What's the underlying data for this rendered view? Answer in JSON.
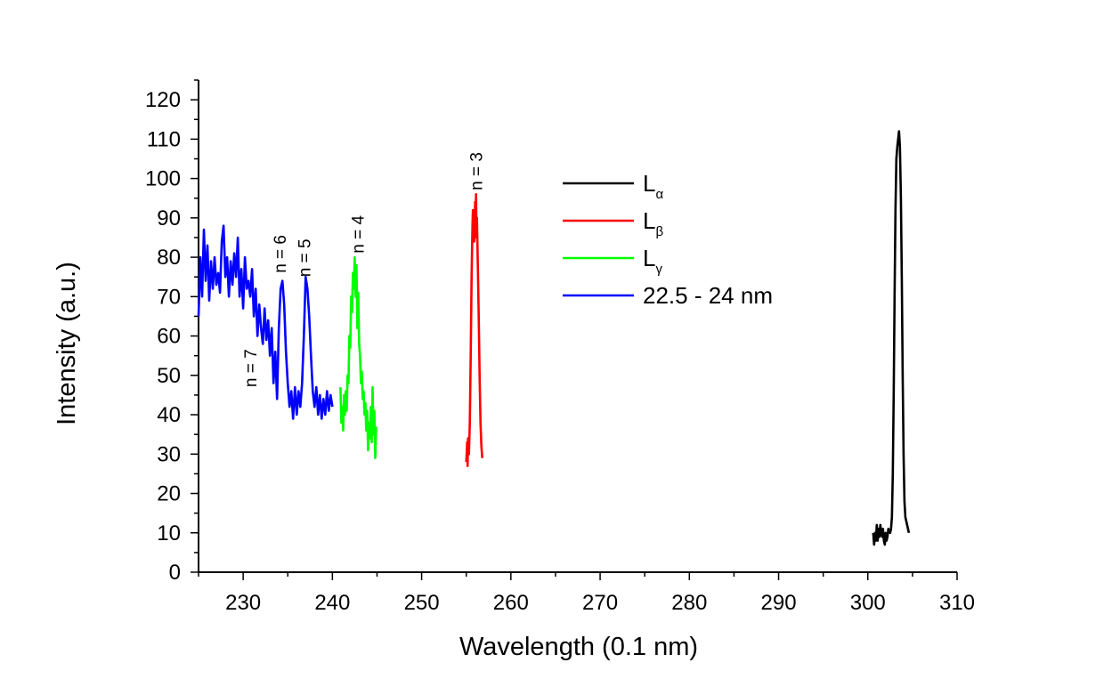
{
  "chart_data": {
    "type": "line",
    "xlabel": "Wavelength (0.1 nm)",
    "ylabel": "Intensity (a.u.)",
    "xlim": [
      225,
      310
    ],
    "ylim": [
      0,
      125
    ],
    "x_ticks": [
      230,
      240,
      250,
      260,
      270,
      280,
      290,
      300,
      310
    ],
    "y_ticks": [
      0,
      10,
      20,
      30,
      40,
      50,
      60,
      70,
      80,
      90,
      100,
      110,
      120
    ],
    "grid": false,
    "legend_position": "top-center",
    "series": [
      {
        "name": "L",
        "name_subscript": "α",
        "color": "#000000",
        "points": [
          [
            300.6,
            10
          ],
          [
            300.7,
            7
          ],
          [
            300.8,
            10
          ],
          [
            300.9,
            8
          ],
          [
            301.0,
            12
          ],
          [
            301.1,
            8
          ],
          [
            301.2,
            11
          ],
          [
            301.3,
            9
          ],
          [
            301.4,
            12
          ],
          [
            301.5,
            10
          ],
          [
            301.6,
            9
          ],
          [
            301.7,
            11
          ],
          [
            301.8,
            8
          ],
          [
            301.9,
            7
          ],
          [
            302.0,
            10
          ],
          [
            302.1,
            8
          ],
          [
            302.2,
            9
          ],
          [
            302.3,
            11
          ],
          [
            302.5,
            10
          ],
          [
            302.6,
            11
          ],
          [
            302.7,
            14
          ],
          [
            302.8,
            25
          ],
          [
            302.9,
            45
          ],
          [
            303.0,
            70
          ],
          [
            303.1,
            92
          ],
          [
            303.2,
            105
          ],
          [
            303.3,
            108
          ],
          [
            303.4,
            110
          ],
          [
            303.5,
            112
          ],
          [
            303.6,
            108
          ],
          [
            303.7,
            95
          ],
          [
            303.8,
            75
          ],
          [
            303.9,
            50
          ],
          [
            304.0,
            30
          ],
          [
            304.1,
            18
          ],
          [
            304.2,
            14
          ],
          [
            304.4,
            12
          ],
          [
            304.6,
            10
          ]
        ]
      },
      {
        "name": "L",
        "name_subscript": "β",
        "color": "#ff0000",
        "points": [
          [
            255.0,
            28
          ],
          [
            255.05,
            30
          ],
          [
            255.1,
            33
          ],
          [
            255.15,
            27
          ],
          [
            255.2,
            34
          ],
          [
            255.3,
            30
          ],
          [
            255.4,
            38
          ],
          [
            255.5,
            55
          ],
          [
            255.6,
            75
          ],
          [
            255.7,
            88
          ],
          [
            255.75,
            92
          ],
          [
            255.8,
            86
          ],
          [
            255.85,
            90
          ],
          [
            255.9,
            84
          ],
          [
            256.0,
            94
          ],
          [
            256.05,
            88
          ],
          [
            256.1,
            96
          ],
          [
            256.15,
            85
          ],
          [
            256.2,
            90
          ],
          [
            256.3,
            78
          ],
          [
            256.4,
            65
          ],
          [
            256.5,
            50
          ],
          [
            256.6,
            38
          ],
          [
            256.7,
            32
          ],
          [
            256.8,
            29
          ]
        ]
      },
      {
        "name": "L",
        "name_subscript": "γ",
        "color": "#00ff00",
        "points": [
          [
            240.9,
            47
          ],
          [
            241.0,
            38
          ],
          [
            241.1,
            42
          ],
          [
            241.2,
            36
          ],
          [
            241.3,
            45
          ],
          [
            241.4,
            40
          ],
          [
            241.5,
            46
          ],
          [
            241.6,
            41
          ],
          [
            241.7,
            50
          ],
          [
            241.8,
            48
          ],
          [
            241.9,
            60
          ],
          [
            242.0,
            57
          ],
          [
            242.1,
            70
          ],
          [
            242.2,
            66
          ],
          [
            242.3,
            76
          ],
          [
            242.4,
            72
          ],
          [
            242.5,
            80
          ],
          [
            242.6,
            70
          ],
          [
            242.7,
            78
          ],
          [
            242.8,
            62
          ],
          [
            242.9,
            71
          ],
          [
            243.0,
            58
          ],
          [
            243.1,
            55
          ],
          [
            243.2,
            48
          ],
          [
            243.3,
            51
          ],
          [
            243.4,
            44
          ],
          [
            243.5,
            46
          ],
          [
            243.6,
            40
          ],
          [
            243.7,
            43
          ],
          [
            243.8,
            36
          ],
          [
            243.9,
            41
          ],
          [
            244.0,
            31
          ],
          [
            244.1,
            38
          ],
          [
            244.2,
            34
          ],
          [
            244.3,
            42
          ],
          [
            244.4,
            33
          ],
          [
            244.5,
            47
          ],
          [
            244.6,
            35
          ],
          [
            244.7,
            41
          ],
          [
            244.8,
            29
          ],
          [
            244.9,
            37
          ]
        ]
      },
      {
        "name": "22.5 - 24 nm",
        "color": "#0000ff",
        "points": [
          [
            225.0,
            65
          ],
          [
            225.2,
            80
          ],
          [
            225.4,
            70
          ],
          [
            225.6,
            87
          ],
          [
            225.8,
            74
          ],
          [
            226.0,
            83
          ],
          [
            226.2,
            69
          ],
          [
            226.4,
            79
          ],
          [
            226.6,
            72
          ],
          [
            226.8,
            80
          ],
          [
            227.0,
            73
          ],
          [
            227.2,
            76
          ],
          [
            227.4,
            71
          ],
          [
            227.6,
            84
          ],
          [
            227.8,
            88
          ],
          [
            228.0,
            75
          ],
          [
            228.2,
            80
          ],
          [
            228.4,
            70
          ],
          [
            228.6,
            79
          ],
          [
            228.8,
            73
          ],
          [
            229.0,
            81
          ],
          [
            229.2,
            75
          ],
          [
            229.4,
            85
          ],
          [
            229.6,
            70
          ],
          [
            229.8,
            77
          ],
          [
            230.0,
            67
          ],
          [
            230.2,
            80
          ],
          [
            230.4,
            72
          ],
          [
            230.6,
            74
          ],
          [
            230.8,
            70
          ],
          [
            231.0,
            77
          ],
          [
            231.2,
            65
          ],
          [
            231.4,
            72
          ],
          [
            231.6,
            60
          ],
          [
            231.8,
            68
          ],
          [
            232.0,
            62
          ],
          [
            232.2,
            58
          ],
          [
            232.4,
            67
          ],
          [
            232.6,
            59
          ],
          [
            232.8,
            64
          ],
          [
            233.0,
            55
          ],
          [
            233.2,
            62
          ],
          [
            233.4,
            48
          ],
          [
            233.6,
            56
          ],
          [
            233.8,
            44
          ],
          [
            234.0,
            62
          ],
          [
            234.2,
            72
          ],
          [
            234.4,
            74
          ],
          [
            234.6,
            68
          ],
          [
            234.8,
            56
          ],
          [
            235.0,
            48
          ],
          [
            235.2,
            42
          ],
          [
            235.4,
            46
          ],
          [
            235.6,
            39
          ],
          [
            235.8,
            47
          ],
          [
            236.0,
            40
          ],
          [
            236.2,
            46
          ],
          [
            236.4,
            42
          ],
          [
            236.6,
            48
          ],
          [
            236.8,
            60
          ],
          [
            237.0,
            75
          ],
          [
            237.2,
            72
          ],
          [
            237.4,
            65
          ],
          [
            237.6,
            55
          ],
          [
            237.8,
            46
          ],
          [
            238.0,
            42
          ],
          [
            238.2,
            47
          ],
          [
            238.4,
            40
          ],
          [
            238.6,
            45
          ],
          [
            238.8,
            39
          ],
          [
            239.0,
            44
          ],
          [
            239.2,
            40
          ],
          [
            239.4,
            46
          ],
          [
            239.6,
            41
          ],
          [
            239.8,
            45
          ],
          [
            240.0,
            42
          ]
        ]
      }
    ],
    "annotations": [
      {
        "text": "n = 7",
        "x": 231.5,
        "y": 47
      },
      {
        "text": "n = 6",
        "x": 234.8,
        "y": 76
      },
      {
        "text": "n = 5",
        "x": 237.5,
        "y": 75
      },
      {
        "text": "n = 4",
        "x": 243.5,
        "y": 81
      },
      {
        "text": "n = 3",
        "x": 256.8,
        "y": 97
      }
    ]
  }
}
